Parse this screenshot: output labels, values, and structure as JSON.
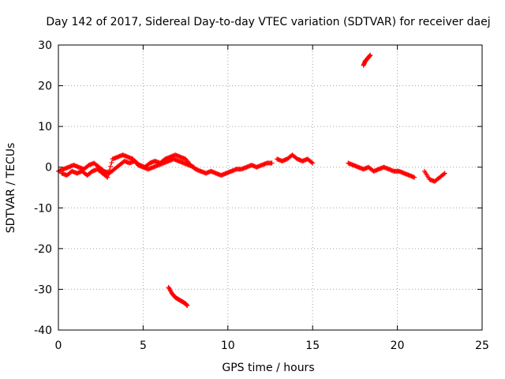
{
  "chart_data": {
    "type": "scatter",
    "title": "Day 142 of 2017, Sidereal Day-to-day VTEC variation (SDTVAR) for receiver daej",
    "xlabel": "GPS time / hours",
    "ylabel": "SDTVAR / TECUs",
    "xlim": [
      0,
      25
    ],
    "ylim": [
      -40,
      30
    ],
    "xticks": [
      0,
      5,
      10,
      15,
      20,
      25
    ],
    "yticks": [
      -40,
      -30,
      -20,
      -10,
      0,
      10,
      20,
      30
    ],
    "xtick_labels": [
      "0",
      "5",
      "10",
      "15",
      "20",
      "25"
    ],
    "ytick_labels": [
      "-40",
      "-30",
      "-20",
      "-10",
      "0",
      "10",
      "20",
      "30"
    ],
    "grid": true,
    "marker": "plus",
    "color": "#ff0000",
    "series": [
      {
        "name": "SDTVAR",
        "segments": [
          {
            "x": [
              0.0,
              0.3,
              0.6,
              0.9,
              1.2,
              1.5,
              1.8,
              2.1,
              2.4,
              2.7,
              3.0,
              3.3,
              3.6,
              3.9,
              4.2,
              4.5,
              4.8,
              5.1,
              5.4,
              5.7,
              6.0,
              6.3,
              6.6,
              6.9,
              7.2,
              7.5,
              7.8,
              8.1,
              8.4,
              8.7,
              9.0,
              9.3,
              9.6,
              9.9,
              10.2,
              10.5,
              10.8,
              11.1,
              11.4,
              11.7,
              12.0,
              12.3,
              12.6
            ],
            "y": [
              -1.0,
              -0.5,
              0.0,
              0.5,
              0.0,
              -0.5,
              0.5,
              1.0,
              0.0,
              -1.0,
              -1.5,
              -0.5,
              0.5,
              1.5,
              1.0,
              1.5,
              0.5,
              0.0,
              1.0,
              1.5,
              1.0,
              2.0,
              2.5,
              3.0,
              2.5,
              2.0,
              0.5,
              -0.5,
              -1.0,
              -1.5,
              -1.0,
              -1.5,
              -2.0,
              -1.5,
              -1.0,
              -0.5,
              -0.5,
              0.0,
              0.5,
              0.0,
              0.5,
              1.0,
              1.0
            ]
          },
          {
            "x": [
              0.2,
              0.5,
              0.8,
              1.1,
              1.4,
              1.7,
              2.0,
              2.3,
              2.6,
              2.9,
              3.2,
              3.5,
              3.8,
              4.1,
              4.4,
              4.7,
              5.0,
              5.3,
              5.6,
              5.9,
              6.2,
              6.5,
              6.8,
              7.1,
              7.4,
              7.7,
              8.0
            ],
            "y": [
              -1.5,
              -2.0,
              -1.0,
              -1.5,
              -1.0,
              -2.0,
              -1.0,
              -0.5,
              -1.5,
              -2.5,
              2.0,
              2.5,
              3.0,
              2.5,
              2.0,
              0.5,
              0.0,
              -0.5,
              0.0,
              0.5,
              1.0,
              1.5,
              2.0,
              1.5,
              1.0,
              0.5,
              0.0
            ]
          },
          {
            "x": [
              12.9,
              13.2,
              13.5,
              13.8,
              14.1,
              14.4,
              14.7,
              15.0
            ],
            "y": [
              2.0,
              1.5,
              2.0,
              3.0,
              2.0,
              1.5,
              2.0,
              1.0
            ]
          },
          {
            "x": [
              17.1,
              17.4,
              17.7,
              18.0,
              18.3,
              18.6,
              18.9,
              19.2,
              19.5,
              19.8,
              20.1,
              20.4,
              20.7,
              21.0
            ],
            "y": [
              1.0,
              0.5,
              0.0,
              -0.5,
              0.0,
              -1.0,
              -0.5,
              0.0,
              -0.5,
              -1.0,
              -1.0,
              -1.5,
              -2.0,
              -2.5
            ]
          },
          {
            "x": [
              21.6,
              21.9,
              22.2,
              22.5,
              22.8
            ],
            "y": [
              -1.0,
              -3.0,
              -3.5,
              -2.5,
              -1.5
            ]
          },
          {
            "x": [
              18.0,
              18.1,
              18.2,
              18.3,
              18.4
            ],
            "y": [
              25.0,
              26.0,
              26.5,
              27.0,
              27.5
            ]
          },
          {
            "x": [
              6.5,
              6.7,
              6.9,
              7.1,
              7.3,
              7.5,
              7.6
            ],
            "y": [
              -29.5,
              -31.0,
              -32.0,
              -32.5,
              -33.0,
              -33.5,
              -34.0
            ]
          }
        ]
      }
    ]
  }
}
